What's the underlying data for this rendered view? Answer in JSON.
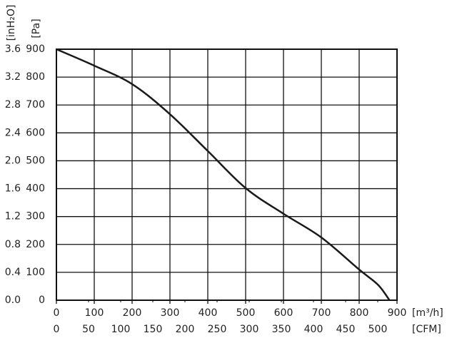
{
  "chart_data": {
    "type": "line",
    "x": [
      0,
      100,
      200,
      300,
      400,
      500,
      600,
      700,
      800,
      850,
      880
    ],
    "values": [
      900,
      841,
      775,
      667,
      535,
      402,
      310,
      225,
      110,
      55,
      0
    ],
    "color": "#1a1a1a",
    "xlim": [
      0,
      900
    ],
    "xticks": [
      0,
      100,
      200,
      300,
      400,
      500,
      600,
      700,
      800,
      900
    ],
    "x2lim": [
      0,
      530
    ],
    "x2ticks": [
      0,
      50,
      100,
      150,
      200,
      250,
      300,
      350,
      400,
      450,
      500
    ],
    "ylim": [
      0,
      900
    ],
    "yticks": [
      0,
      100,
      200,
      300,
      400,
      500,
      600,
      700,
      800,
      900
    ],
    "y2lim": [
      0,
      3.6
    ],
    "y2ticks": [
      {
        "value": 0,
        "label": "0.0"
      },
      0.4,
      0.8,
      1.2,
      1.6,
      {
        "value": 2,
        "label": "2.0"
      },
      2.4,
      2.8,
      3.2,
      3.6
    ],
    "x_label": "[m³/h]",
    "x2_label": "[CFM]",
    "y_label": "[Pa]",
    "y2_label": "[inH₂O]",
    "grid": true
  }
}
